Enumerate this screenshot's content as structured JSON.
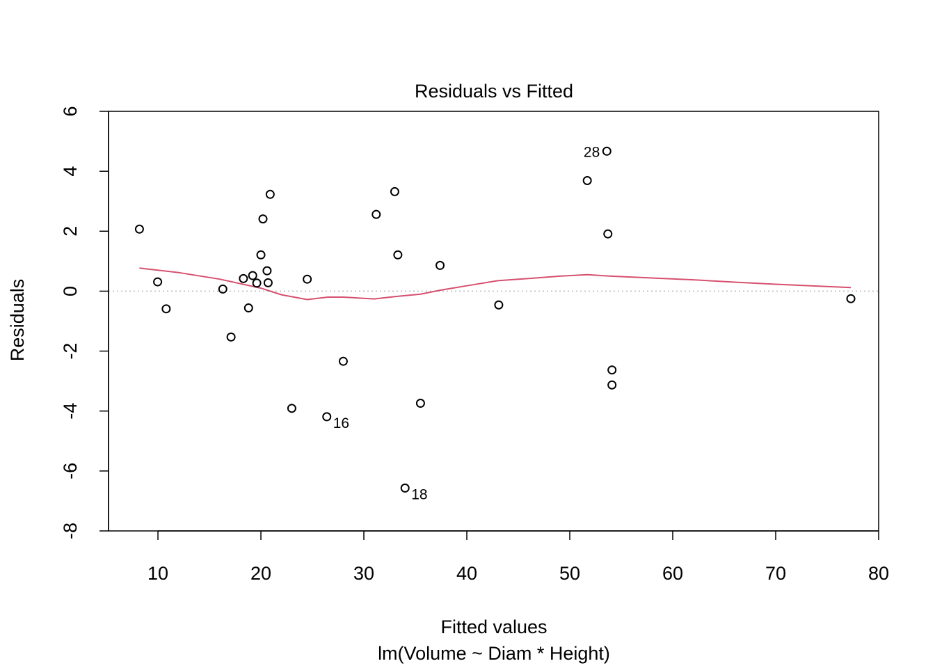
{
  "chart_data": {
    "type": "scatter",
    "title": "Residuals vs Fitted",
    "xlabel": "Fitted values",
    "subtitle": "lm(Volume ~ Diam * Height)",
    "ylabel": "Residuals",
    "xlim": [
      5.2,
      80
    ],
    "ylim": [
      -8,
      6
    ],
    "xticks": [
      10,
      20,
      30,
      40,
      50,
      60,
      70,
      80
    ],
    "yticks": [
      -8,
      -6,
      -4,
      -2,
      0,
      2,
      4,
      6
    ],
    "grid": false,
    "reference_line": {
      "y": 0,
      "style": "dotted",
      "color": "#b8b8b8"
    },
    "points": [
      {
        "x": 8.2,
        "y": 2.07
      },
      {
        "x": 9.97,
        "y": 0.31
      },
      {
        "x": 10.8,
        "y": -0.59
      },
      {
        "x": 16.3,
        "y": 0.07
      },
      {
        "x": 17.1,
        "y": -1.53
      },
      {
        "x": 18.3,
        "y": 0.42
      },
      {
        "x": 18.8,
        "y": -0.56
      },
      {
        "x": 19.2,
        "y": 0.52
      },
      {
        "x": 19.6,
        "y": 0.27
      },
      {
        "x": 20.0,
        "y": 1.21
      },
      {
        "x": 20.2,
        "y": 2.41
      },
      {
        "x": 20.6,
        "y": 0.68
      },
      {
        "x": 20.7,
        "y": 0.28
      },
      {
        "x": 20.9,
        "y": 3.23
      },
      {
        "x": 23.0,
        "y": -3.91
      },
      {
        "x": 24.5,
        "y": 0.4
      },
      {
        "x": 26.4,
        "y": -4.19
      },
      {
        "x": 28.0,
        "y": -2.34
      },
      {
        "x": 31.2,
        "y": 2.56
      },
      {
        "x": 33.0,
        "y": 3.32
      },
      {
        "x": 33.3,
        "y": 1.21
      },
      {
        "x": 34.0,
        "y": -6.57
      },
      {
        "x": 35.5,
        "y": -3.74
      },
      {
        "x": 37.4,
        "y": 0.86
      },
      {
        "x": 43.1,
        "y": -0.46
      },
      {
        "x": 51.7,
        "y": 3.69
      },
      {
        "x": 53.6,
        "y": 4.67
      },
      {
        "x": 53.7,
        "y": 1.91
      },
      {
        "x": 54.1,
        "y": -2.63
      },
      {
        "x": 54.1,
        "y": -3.13
      },
      {
        "x": 77.3,
        "y": -0.25
      }
    ],
    "point_labels": [
      {
        "text": "28",
        "x": 53.6,
        "y": 4.67,
        "side": "left"
      },
      {
        "text": "16",
        "x": 26.4,
        "y": -4.19,
        "side": "below-right"
      },
      {
        "text": "18",
        "x": 34.0,
        "y": -6.57,
        "side": "below-right"
      }
    ],
    "smooth_line": {
      "color": "#d6506f",
      "x": [
        8.2,
        12,
        16,
        20,
        22,
        24.5,
        26.5,
        28,
        31,
        33,
        35.5,
        37.4,
        40,
        43,
        46,
        49,
        51.7,
        54,
        58,
        62,
        66,
        70,
        74,
        77.3
      ],
      "y": [
        0.77,
        0.62,
        0.4,
        0.1,
        -0.12,
        -0.28,
        -0.2,
        -0.2,
        -0.26,
        -0.18,
        -0.1,
        0.03,
        0.18,
        0.35,
        0.42,
        0.5,
        0.55,
        0.5,
        0.44,
        0.38,
        0.3,
        0.23,
        0.17,
        0.12
      ]
    }
  }
}
